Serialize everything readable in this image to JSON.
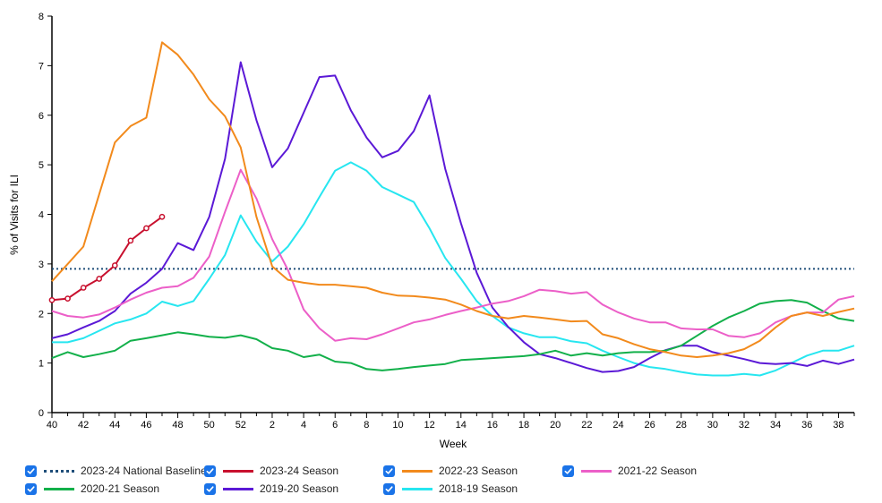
{
  "chart_data": {
    "type": "line",
    "title": "",
    "xlabel": "Week",
    "ylabel": "% of Visits for ILI",
    "ylim": [
      0,
      8
    ],
    "yticks": [
      "0",
      "1",
      "2",
      "3",
      "4",
      "5",
      "6",
      "7",
      "8"
    ],
    "xticks": [
      "40",
      "42",
      "44",
      "46",
      "48",
      "50",
      "52",
      "2",
      "4",
      "6",
      "8",
      "10",
      "12",
      "14",
      "16",
      "18",
      "20",
      "22",
      "24",
      "26",
      "28",
      "30",
      "32",
      "34",
      "36",
      "38"
    ],
    "x_weeks": [
      "40",
      "41",
      "42",
      "43",
      "44",
      "45",
      "46",
      "47",
      "48",
      "49",
      "50",
      "51",
      "52",
      "1",
      "2",
      "3",
      "4",
      "5",
      "6",
      "7",
      "8",
      "9",
      "10",
      "11",
      "12",
      "13",
      "14",
      "15",
      "16",
      "17",
      "18",
      "19",
      "20",
      "21",
      "22",
      "23",
      "24",
      "25",
      "26",
      "27",
      "28",
      "29",
      "30",
      "31",
      "32",
      "33",
      "34",
      "35",
      "36",
      "37",
      "38",
      "39"
    ],
    "baseline": {
      "name": "2023-24 National Baseline",
      "value": 2.9,
      "color": "#1f4e79"
    },
    "legend_placement": "bottom",
    "series": [
      {
        "name": "2023-24 Season",
        "color": "#c8102e",
        "markers": true,
        "values": [
          2.27,
          2.3,
          2.52,
          2.7,
          2.97,
          3.47,
          3.72,
          3.95
        ]
      },
      {
        "name": "2022-23 Season",
        "color": "#f28a1c",
        "markers": false,
        "values": [
          2.65,
          3.0,
          3.35,
          4.4,
          5.45,
          5.78,
          5.95,
          7.47,
          7.22,
          6.82,
          6.32,
          5.98,
          5.35,
          3.95,
          2.95,
          2.68,
          2.62,
          2.58,
          2.58,
          2.55,
          2.52,
          2.42,
          2.36,
          2.35,
          2.32,
          2.28,
          2.18,
          2.05,
          1.95,
          1.9,
          1.95,
          1.92,
          1.88,
          1.84,
          1.85,
          1.58,
          1.5,
          1.38,
          1.28,
          1.22,
          1.15,
          1.12,
          1.15,
          1.2,
          1.28,
          1.45,
          1.72,
          1.95,
          2.02,
          1.95,
          2.03,
          2.1
        ]
      },
      {
        "name": "2021-22 Season",
        "color": "#ec5fc8",
        "markers": false,
        "values": [
          2.05,
          1.95,
          1.92,
          1.98,
          2.12,
          2.28,
          2.42,
          2.52,
          2.55,
          2.72,
          3.15,
          4.05,
          4.9,
          4.32,
          3.5,
          2.88,
          2.08,
          1.7,
          1.45,
          1.5,
          1.48,
          1.58,
          1.7,
          1.82,
          1.88,
          1.97,
          2.05,
          2.12,
          2.2,
          2.25,
          2.35,
          2.48,
          2.45,
          2.4,
          2.43,
          2.18,
          2.02,
          1.9,
          1.82,
          1.82,
          1.7,
          1.68,
          1.68,
          1.55,
          1.52,
          1.6,
          1.82,
          1.95,
          2.02,
          2.02,
          2.28,
          2.35
        ]
      },
      {
        "name": "2020-21 Season",
        "color": "#12b04a",
        "markers": false,
        "values": [
          1.1,
          1.22,
          1.12,
          1.18,
          1.25,
          1.45,
          1.5,
          1.56,
          1.62,
          1.58,
          1.53,
          1.51,
          1.56,
          1.48,
          1.3,
          1.25,
          1.12,
          1.17,
          1.03,
          1.0,
          0.88,
          0.85,
          0.88,
          0.92,
          0.95,
          0.98,
          1.06,
          1.08,
          1.1,
          1.12,
          1.14,
          1.18,
          1.25,
          1.15,
          1.2,
          1.15,
          1.2,
          1.22,
          1.22,
          1.25,
          1.35,
          1.55,
          1.75,
          1.92,
          2.05,
          2.2,
          2.25,
          2.27,
          2.22,
          2.05,
          1.9,
          1.85
        ]
      },
      {
        "name": "2019-20 Season",
        "color": "#5b19d6",
        "markers": false,
        "values": [
          1.5,
          1.58,
          1.72,
          1.85,
          2.05,
          2.4,
          2.62,
          2.9,
          3.42,
          3.28,
          3.95,
          5.12,
          7.07,
          5.9,
          4.95,
          5.33,
          6.05,
          6.77,
          6.8,
          6.1,
          5.55,
          5.15,
          5.28,
          5.68,
          6.4,
          4.92,
          3.82,
          2.82,
          2.12,
          1.73,
          1.42,
          1.18,
          1.1,
          1.0,
          0.9,
          0.82,
          0.84,
          0.92,
          1.1,
          1.26,
          1.35,
          1.35,
          1.22,
          1.15,
          1.08,
          1.0,
          0.98,
          1.0,
          0.94,
          1.05,
          0.98,
          1.07
        ]
      },
      {
        "name": "2018-19 Season",
        "color": "#27e6f0",
        "markers": false,
        "values": [
          1.42,
          1.42,
          1.5,
          1.65,
          1.8,
          1.88,
          2.0,
          2.24,
          2.15,
          2.25,
          2.7,
          3.18,
          3.98,
          3.45,
          3.05,
          3.35,
          3.8,
          4.35,
          4.88,
          5.05,
          4.88,
          4.55,
          4.4,
          4.25,
          3.72,
          3.12,
          2.7,
          2.25,
          1.95,
          1.72,
          1.6,
          1.52,
          1.52,
          1.44,
          1.4,
          1.25,
          1.12,
          1.0,
          0.92,
          0.88,
          0.82,
          0.77,
          0.75,
          0.75,
          0.78,
          0.75,
          0.85,
          1.0,
          1.15,
          1.25,
          1.25,
          1.35
        ]
      }
    ]
  },
  "legend": {
    "items": [
      {
        "label": "2023-24 National Baseline",
        "color": "#1f4e79",
        "style": "dotted"
      },
      {
        "label": "2023-24 Season",
        "color": "#c8102e",
        "style": "solid"
      },
      {
        "label": "2022-23 Season",
        "color": "#f28a1c",
        "style": "solid"
      },
      {
        "label": "2021-22 Season",
        "color": "#ec5fc8",
        "style": "solid"
      },
      {
        "label": "2020-21 Season",
        "color": "#12b04a",
        "style": "solid"
      },
      {
        "label": "2019-20 Season",
        "color": "#5b19d6",
        "style": "solid"
      },
      {
        "label": "2018-19 Season",
        "color": "#27e6f0",
        "style": "solid"
      }
    ]
  }
}
